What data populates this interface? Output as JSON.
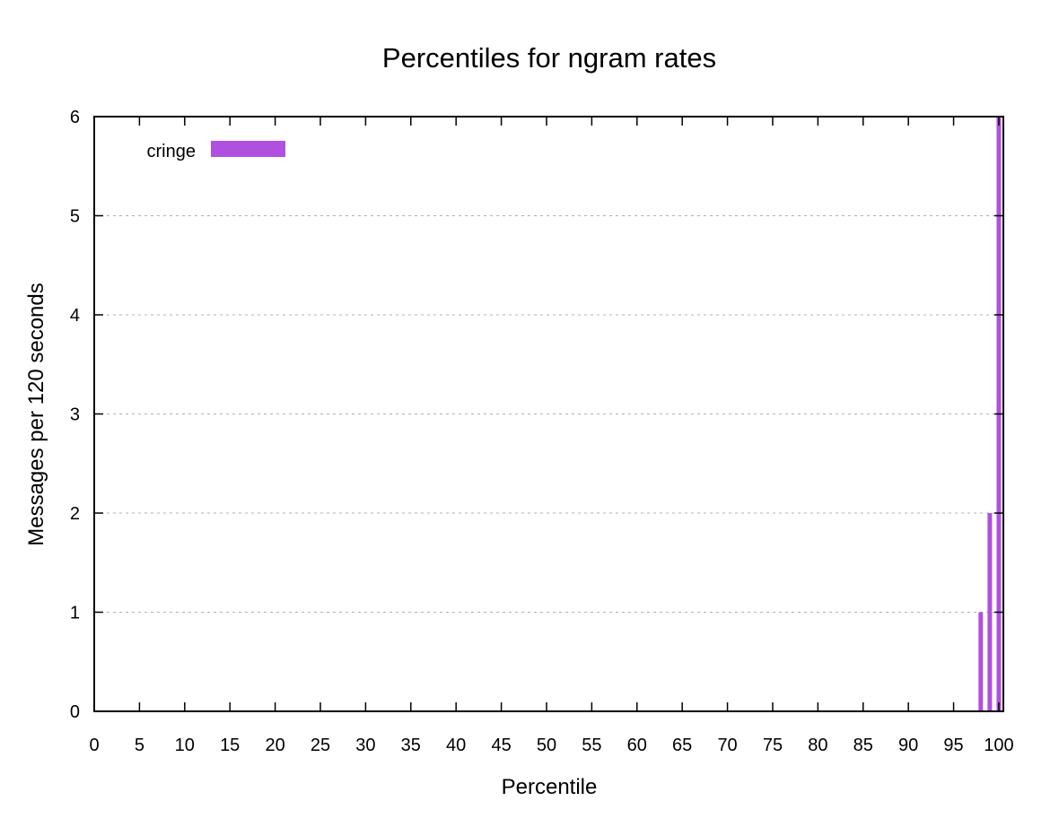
{
  "chart_data": {
    "type": "bar",
    "title": "Percentiles for ngram rates",
    "xlabel": "Percentile",
    "ylabel": "Messages per 120 seconds",
    "xlim": [
      0,
      100.5
    ],
    "ylim": [
      0,
      6
    ],
    "xticks": [
      0,
      5,
      10,
      15,
      20,
      25,
      30,
      35,
      40,
      45,
      50,
      55,
      60,
      65,
      70,
      75,
      80,
      85,
      90,
      95,
      100
    ],
    "yticks": [
      0,
      1,
      2,
      3,
      4,
      5,
      6
    ],
    "grid": "horizontal dashed",
    "legend_position": "top-left",
    "series": [
      {
        "name": "cringe",
        "color": "#b050e0",
        "x": [
          98,
          99,
          100
        ],
        "values": [
          1,
          2,
          6
        ]
      }
    ]
  }
}
